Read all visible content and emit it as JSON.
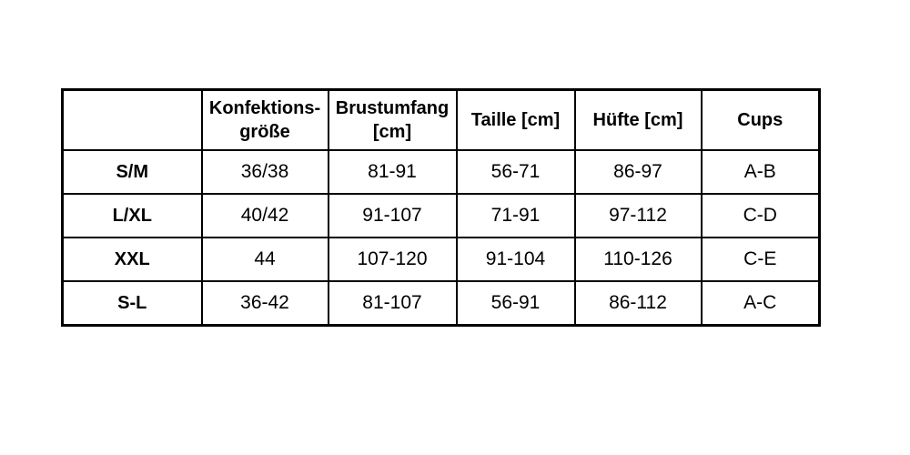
{
  "page": {
    "background_color": "#ffffff",
    "border_color": "#000000",
    "text_color": "#000000"
  },
  "chart_data": {
    "type": "table",
    "title": "",
    "columns": [
      "",
      "Konfektions-\ngröße",
      "Brustumfang\n[cm]",
      "Taille [cm]",
      "Hüfte [cm]",
      "Cups"
    ],
    "rows": [
      {
        "label": "S/M",
        "cells": [
          "36/38",
          "81-91",
          "56-71",
          "86-97",
          "A-B"
        ]
      },
      {
        "label": "L/XL",
        "cells": [
          "40/42",
          "91-107",
          "71-91",
          "97-112",
          "C-D"
        ]
      },
      {
        "label": "XXL",
        "cells": [
          "44",
          "107-120",
          "91-104",
          "110-126",
          "C-E"
        ]
      },
      {
        "label": "S-L",
        "cells": [
          "36-42",
          "81-107",
          "56-91",
          "86-112",
          "A-C"
        ]
      }
    ],
    "layout": {
      "grid": true,
      "outer_border_px": 3,
      "inner_border_px": 2,
      "header_bold": true,
      "row_labels_bold": true
    }
  }
}
